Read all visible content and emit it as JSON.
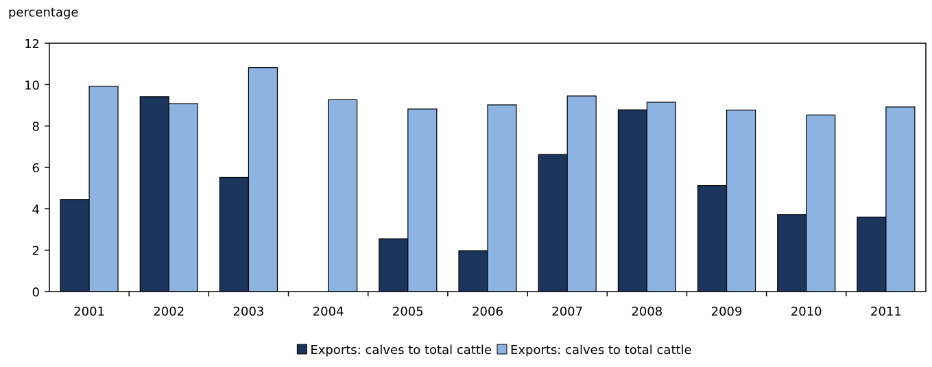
{
  "chart_data": {
    "type": "bar",
    "ylabel": "percentage",
    "ylim": [
      0,
      12
    ],
    "yticks": [
      0,
      2,
      4,
      6,
      8,
      10,
      12
    ],
    "grid": false,
    "legend_position": "bottom",
    "categories": [
      "2001",
      "2002",
      "2003",
      "2004",
      "2005",
      "2006",
      "2007",
      "2008",
      "2009",
      "2010",
      "2011"
    ],
    "series": [
      {
        "name": "Exports: calves to total cattle",
        "color": "#1b355c",
        "values": [
          4.45,
          9.42,
          5.52,
          0,
          2.55,
          1.97,
          6.62,
          8.78,
          5.12,
          3.72,
          3.6
        ]
      },
      {
        "name": "Exports: calves to total cattle",
        "color": "#8db3e2",
        "values": [
          9.92,
          9.08,
          10.82,
          9.27,
          8.82,
          9.02,
          9.45,
          9.15,
          8.77,
          8.53,
          8.92
        ]
      }
    ]
  }
}
